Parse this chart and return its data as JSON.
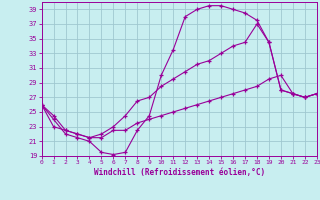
{
  "xlabel": "Windchill (Refroidissement éolien,°C)",
  "background_color": "#c8eef0",
  "grid_color": "#a0c8d0",
  "line_color": "#990099",
  "xlim": [
    0,
    23
  ],
  "ylim": [
    19,
    40
  ],
  "yticks": [
    19,
    21,
    23,
    25,
    27,
    29,
    31,
    33,
    35,
    37,
    39
  ],
  "xticks": [
    0,
    1,
    2,
    3,
    4,
    5,
    6,
    7,
    8,
    9,
    10,
    11,
    12,
    13,
    14,
    15,
    16,
    17,
    18,
    19,
    20,
    21,
    22,
    23
  ],
  "curve1_x": [
    0,
    1,
    2,
    3,
    4,
    5,
    6,
    7,
    8,
    9,
    10,
    11,
    12,
    13,
    14,
    15,
    16,
    17,
    18,
    19,
    20,
    21,
    22,
    23
  ],
  "curve1_y": [
    26.0,
    24.0,
    22.0,
    21.5,
    21.0,
    19.5,
    19.2,
    19.5,
    22.5,
    24.5,
    30.0,
    33.5,
    38.0,
    39.0,
    39.5,
    39.5,
    39.0,
    38.5,
    37.5,
    34.5,
    28.0,
    27.5,
    27.0,
    27.5
  ],
  "curve2_x": [
    0,
    1,
    2,
    3,
    4,
    5,
    6,
    7,
    8,
    9,
    10,
    11,
    12,
    13,
    14,
    15,
    16,
    17,
    18,
    19,
    20,
    21,
    22,
    23
  ],
  "curve2_y": [
    26.0,
    24.5,
    22.5,
    22.0,
    21.5,
    22.0,
    23.0,
    24.5,
    26.5,
    27.0,
    28.5,
    29.5,
    30.5,
    31.5,
    32.0,
    33.0,
    34.0,
    34.5,
    37.0,
    34.5,
    28.0,
    27.5,
    27.0,
    27.5
  ],
  "curve3_x": [
    0,
    1,
    2,
    3,
    4,
    5,
    6,
    7,
    8,
    9,
    10,
    11,
    12,
    13,
    14,
    15,
    16,
    17,
    18,
    19,
    20,
    21,
    22,
    23
  ],
  "curve3_y": [
    26.0,
    23.0,
    22.5,
    22.0,
    21.5,
    21.5,
    22.5,
    22.5,
    23.5,
    24.0,
    24.5,
    25.0,
    25.5,
    26.0,
    26.5,
    27.0,
    27.5,
    28.0,
    28.5,
    29.5,
    30.0,
    27.5,
    27.0,
    27.5
  ]
}
